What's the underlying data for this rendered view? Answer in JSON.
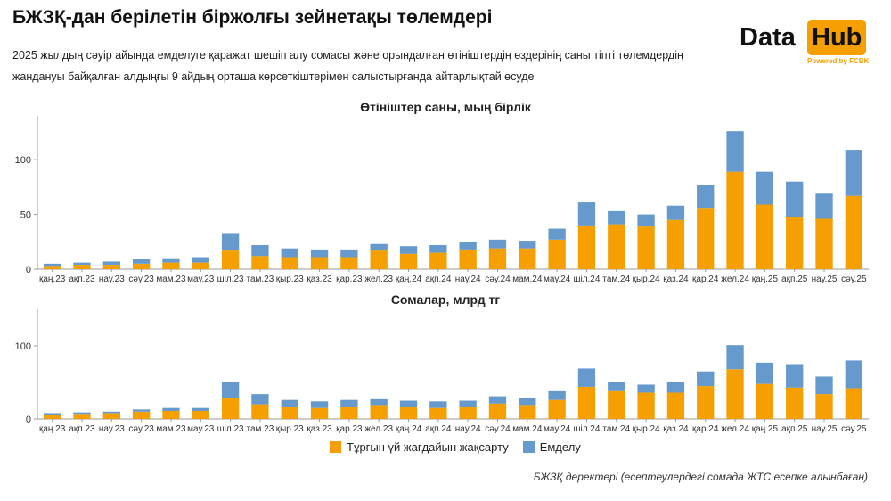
{
  "header": {
    "title": "БЖЗҚ-дан берілетін біржолғы зейнетақы төлемдері",
    "subtitle": "2025 жылдың сәуір айында емделуге қаражат шешіп алу сомасы және орындалған өтініштердің өздерінің саны тіпті төлемдердің жандануы байқалған алдыңғы 9 айдың орташа көрсеткіштерімен салыстырғанда айтарлықтай өсуде"
  },
  "logo": {
    "data": "Data",
    "hub": "Hub",
    "powered": "Powered by FCBK"
  },
  "legend": {
    "housing": "Тұрғын үй жағдайын жақсарту",
    "treatment": "Емделу"
  },
  "footer": "БЖЗҚ деректері (есептеулердегі сомада ЖТС есепке алынбаған)",
  "colors": {
    "housing": "#f5a000",
    "treatment": "#6699cc"
  },
  "chart_data": [
    {
      "type": "bar",
      "stacked": true,
      "title": "Өтініштер саны, мың бірлік",
      "categories": [
        "қаң.23",
        "ақп.23",
        "нау.23",
        "сәу.23",
        "мам.23",
        "мау.23",
        "шіл.23",
        "там.23",
        "қыр.23",
        "қаз.23",
        "қар.23",
        "жел.23",
        "қаң.24",
        "ақп.24",
        "нау.24",
        "сәу.24",
        "мам.24",
        "мау.24",
        "шіл.24",
        "там.24",
        "қыр.24",
        "қаз.24",
        "қар.24",
        "жел.24",
        "қаң.25",
        "ақп.25",
        "нау.25",
        "сәу.25"
      ],
      "yticks": [
        0,
        50,
        100
      ],
      "ylim": [
        0,
        140
      ],
      "series": [
        {
          "key": "housing",
          "values": [
            3,
            4,
            4,
            5,
            6,
            6,
            17,
            12,
            11,
            11,
            11,
            17,
            14,
            15,
            18,
            19,
            19,
            27,
            40,
            41,
            39,
            45,
            56,
            89,
            59,
            48,
            46,
            67
          ]
        },
        {
          "key": "treatment",
          "values": [
            2,
            2,
            3,
            4,
            4,
            5,
            16,
            10,
            8,
            7,
            7,
            6,
            7,
            7,
            7,
            8,
            7,
            10,
            21,
            12,
            11,
            13,
            21,
            37,
            30,
            32,
            23,
            42
          ]
        }
      ]
    },
    {
      "type": "bar",
      "stacked": true,
      "title": "Сомалар, млрд тг",
      "categories": [
        "қаң.23",
        "ақп.23",
        "нау.23",
        "сәу.23",
        "мам.23",
        "мау.23",
        "шіл.23",
        "там.23",
        "қыр.23",
        "қаз.23",
        "қар.23",
        "жел.23",
        "қаң.24",
        "ақп.24",
        "нау.24",
        "сәу.24",
        "мам.24",
        "мау.24",
        "шіл.24",
        "там.24",
        "қыр.24",
        "қаз.24",
        "қар.24",
        "жел.24",
        "қаң.25",
        "ақп.25",
        "нау.25",
        "сәу.25"
      ],
      "yticks": [
        0,
        100
      ],
      "ylim": [
        0,
        150
      ],
      "series": [
        {
          "key": "housing",
          "values": [
            6,
            7,
            8,
            10,
            11,
            11,
            28,
            20,
            16,
            15,
            16,
            19,
            16,
            15,
            16,
            21,
            19,
            26,
            44,
            38,
            36,
            36,
            45,
            68,
            48,
            43,
            34,
            42
          ]
        },
        {
          "key": "treatment",
          "values": [
            2,
            2,
            2,
            3,
            4,
            4,
            22,
            14,
            10,
            9,
            10,
            8,
            9,
            9,
            9,
            10,
            10,
            12,
            25,
            13,
            11,
            14,
            20,
            33,
            29,
            32,
            24,
            38
          ]
        }
      ]
    }
  ]
}
